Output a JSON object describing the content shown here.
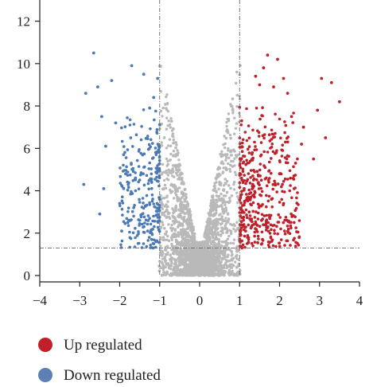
{
  "chart_data": {
    "type": "scatter",
    "title": "",
    "xlabel": "",
    "ylabel": "",
    "xlim": [
      -4,
      4
    ],
    "ylim": [
      0,
      13
    ],
    "xticks": [
      "−4",
      "−3",
      "−2",
      "−1",
      "0",
      "1",
      "2",
      "3",
      "4"
    ],
    "yticks": [
      "0",
      "2",
      "4",
      "6",
      "8",
      "10",
      "12"
    ],
    "thresholds": {
      "fold_change_lines": [
        -1,
        1
      ],
      "significance_line": 1.3
    },
    "grid": false,
    "legend_placement": "bottom-left",
    "series": [
      {
        "name": "Up regulated",
        "color": "#c0202a",
        "points": [
          [
            3.5,
            8.2
          ],
          [
            3.3,
            9.1
          ],
          [
            3.15,
            6.5
          ],
          [
            3.05,
            9.3
          ],
          [
            2.95,
            7.8
          ],
          [
            2.85,
            5.5
          ],
          [
            2.6,
            7.0
          ],
          [
            2.55,
            6.2
          ],
          [
            2.3,
            7.5
          ],
          [
            2.2,
            8.6
          ],
          [
            2.1,
            9.3
          ],
          [
            1.95,
            10.2
          ],
          [
            1.85,
            8.9
          ],
          [
            1.7,
            10.4
          ],
          [
            1.6,
            9.8
          ],
          [
            1.5,
            9.0
          ],
          [
            1.4,
            9.4
          ],
          [
            2.4,
            5.3
          ],
          [
            2.0,
            4.8
          ],
          [
            1.8,
            3.6
          ],
          [
            2.1,
            3.4
          ],
          [
            1.55,
            2.6
          ],
          [
            1.3,
            2.3
          ],
          [
            1.15,
            2.1
          ],
          [
            1.2,
            1.8
          ]
        ],
        "dense_region": {
          "x": [
            1.0,
            2.5
          ],
          "y": [
            1.3,
            8.5
          ],
          "count": 420
        }
      },
      {
        "name": "Down regulated",
        "color": "#4a7ab5",
        "points": [
          [
            -2.65,
            10.5
          ],
          [
            -2.85,
            8.6
          ],
          [
            -2.55,
            8.9
          ],
          [
            -2.2,
            9.2
          ],
          [
            -1.7,
            9.9
          ],
          [
            -1.4,
            9.5
          ],
          [
            -1.05,
            9.3
          ],
          [
            -2.45,
            7.5
          ],
          [
            -2.1,
            7.2
          ],
          [
            -2.35,
            6.1
          ],
          [
            -1.9,
            5.7
          ],
          [
            -2.9,
            4.3
          ],
          [
            -2.4,
            4.1
          ],
          [
            -2.0,
            3.4
          ],
          [
            -1.65,
            3.2
          ],
          [
            -1.8,
            2.5
          ],
          [
            -1.95,
            2.1
          ],
          [
            -1.5,
            2.6
          ],
          [
            -1.3,
            2.1
          ],
          [
            -1.2,
            1.7
          ],
          [
            -1.15,
            1.5
          ],
          [
            -2.5,
            2.9
          ],
          [
            -1.15,
            8.4
          ],
          [
            -1.25,
            7.9
          ],
          [
            -1.85,
            4.8
          ]
        ],
        "dense_region": {
          "x": [
            -2.0,
            -1.0
          ],
          "y": [
            1.3,
            8.2
          ],
          "count": 260
        }
      },
      {
        "name": "",
        "color": "#b9b9b9",
        "dense_region": {
          "x": [
            -1.0,
            1.0
          ],
          "y": [
            0,
            11.7
          ],
          "count": 3200
        }
      }
    ]
  },
  "legend": [
    {
      "label": "Up regulated",
      "color": "#c0202a"
    },
    {
      "label": "Down regulated",
      "color": "#5d80b4"
    }
  ]
}
